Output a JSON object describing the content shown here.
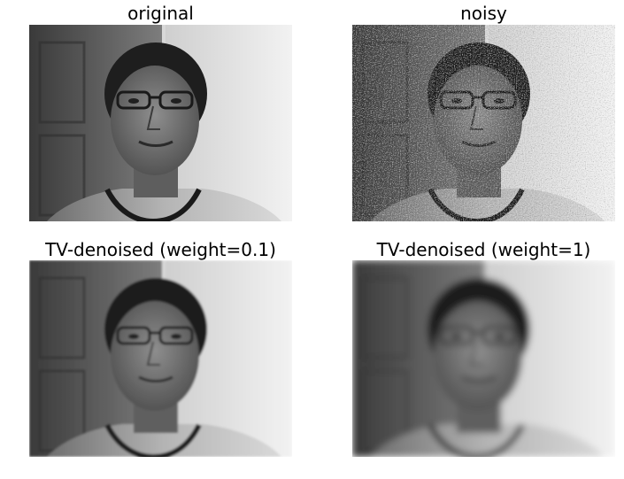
{
  "panels": [
    {
      "title": "original",
      "image": "photo-original"
    },
    {
      "title": "noisy",
      "image": "photo-noisy"
    },
    {
      "title": "TV-denoised (weight=0.1)",
      "image": "photo-denoised-light"
    },
    {
      "title": "TV-denoised (weight=1)",
      "image": "photo-denoised-strong"
    }
  ]
}
